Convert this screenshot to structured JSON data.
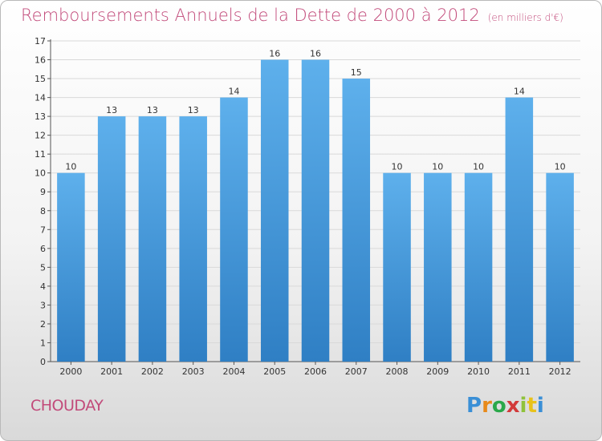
{
  "header": {
    "title": "Remboursements Annuels de la Dette de 2000 à 2012",
    "unit": "(en milliers d'€)"
  },
  "footer": {
    "commune": "CHOUDAY",
    "logo_letters": [
      "P",
      "r",
      "o",
      "x",
      "i",
      "t",
      "i"
    ],
    "logo_colors": [
      "#3a8fd6",
      "#e88a1a",
      "#2aa84a",
      "#d23a3a",
      "#8fc23a",
      "#e8c21a",
      "#3a8fd6"
    ]
  },
  "colors": {
    "bar_top": "#5eb0ec",
    "bar_bottom": "#2f7fc4",
    "grid": "#d9d9d9",
    "axis": "#555555"
  },
  "chart_data": {
    "type": "bar",
    "title": "Remboursements Annuels de la Dette de 2000 à 2012",
    "categories": [
      "2000",
      "2001",
      "2002",
      "2003",
      "2004",
      "2005",
      "2006",
      "2007",
      "2008",
      "2009",
      "2010",
      "2011",
      "2012"
    ],
    "values": [
      10,
      13,
      13,
      13,
      14,
      16,
      16,
      15,
      10,
      10,
      10,
      14,
      10
    ],
    "data_labels": [
      "10",
      "13",
      "13",
      "13",
      "14",
      "16",
      "16",
      "15",
      "10",
      "10",
      "10",
      "14",
      "10"
    ],
    "ylim": [
      0,
      17
    ],
    "yticks": [
      0,
      1,
      2,
      3,
      4,
      5,
      6,
      7,
      8,
      9,
      10,
      11,
      12,
      13,
      14,
      15,
      16,
      17
    ],
    "grid": true
  }
}
